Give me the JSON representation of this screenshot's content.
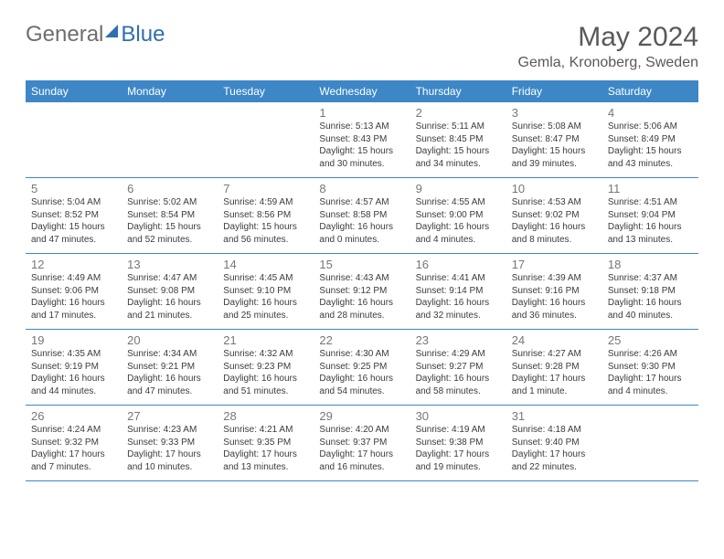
{
  "brand": {
    "word1": "General",
    "word2": "Blue"
  },
  "title": "May 2024",
  "location": "Gemla, Kronoberg, Sweden",
  "colors": {
    "header_bg": "#3d87c7",
    "header_text": "#ffffff",
    "title_text": "#595959",
    "daynum_text": "#777777",
    "body_text": "#3b3b3b",
    "rule": "#3d87c7"
  },
  "weekdays": [
    "Sunday",
    "Monday",
    "Tuesday",
    "Wednesday",
    "Thursday",
    "Friday",
    "Saturday"
  ],
  "weeks": [
    [
      null,
      null,
      null,
      {
        "n": "1",
        "sunrise": "5:13 AM",
        "sunset": "8:43 PM",
        "daylight": "15 hours and 30 minutes."
      },
      {
        "n": "2",
        "sunrise": "5:11 AM",
        "sunset": "8:45 PM",
        "daylight": "15 hours and 34 minutes."
      },
      {
        "n": "3",
        "sunrise": "5:08 AM",
        "sunset": "8:47 PM",
        "daylight": "15 hours and 39 minutes."
      },
      {
        "n": "4",
        "sunrise": "5:06 AM",
        "sunset": "8:49 PM",
        "daylight": "15 hours and 43 minutes."
      }
    ],
    [
      {
        "n": "5",
        "sunrise": "5:04 AM",
        "sunset": "8:52 PM",
        "daylight": "15 hours and 47 minutes."
      },
      {
        "n": "6",
        "sunrise": "5:02 AM",
        "sunset": "8:54 PM",
        "daylight": "15 hours and 52 minutes."
      },
      {
        "n": "7",
        "sunrise": "4:59 AM",
        "sunset": "8:56 PM",
        "daylight": "15 hours and 56 minutes."
      },
      {
        "n": "8",
        "sunrise": "4:57 AM",
        "sunset": "8:58 PM",
        "daylight": "16 hours and 0 minutes."
      },
      {
        "n": "9",
        "sunrise": "4:55 AM",
        "sunset": "9:00 PM",
        "daylight": "16 hours and 4 minutes."
      },
      {
        "n": "10",
        "sunrise": "4:53 AM",
        "sunset": "9:02 PM",
        "daylight": "16 hours and 8 minutes."
      },
      {
        "n": "11",
        "sunrise": "4:51 AM",
        "sunset": "9:04 PM",
        "daylight": "16 hours and 13 minutes."
      }
    ],
    [
      {
        "n": "12",
        "sunrise": "4:49 AM",
        "sunset": "9:06 PM",
        "daylight": "16 hours and 17 minutes."
      },
      {
        "n": "13",
        "sunrise": "4:47 AM",
        "sunset": "9:08 PM",
        "daylight": "16 hours and 21 minutes."
      },
      {
        "n": "14",
        "sunrise": "4:45 AM",
        "sunset": "9:10 PM",
        "daylight": "16 hours and 25 minutes."
      },
      {
        "n": "15",
        "sunrise": "4:43 AM",
        "sunset": "9:12 PM",
        "daylight": "16 hours and 28 minutes."
      },
      {
        "n": "16",
        "sunrise": "4:41 AM",
        "sunset": "9:14 PM",
        "daylight": "16 hours and 32 minutes."
      },
      {
        "n": "17",
        "sunrise": "4:39 AM",
        "sunset": "9:16 PM",
        "daylight": "16 hours and 36 minutes."
      },
      {
        "n": "18",
        "sunrise": "4:37 AM",
        "sunset": "9:18 PM",
        "daylight": "16 hours and 40 minutes."
      }
    ],
    [
      {
        "n": "19",
        "sunrise": "4:35 AM",
        "sunset": "9:19 PM",
        "daylight": "16 hours and 44 minutes."
      },
      {
        "n": "20",
        "sunrise": "4:34 AM",
        "sunset": "9:21 PM",
        "daylight": "16 hours and 47 minutes."
      },
      {
        "n": "21",
        "sunrise": "4:32 AM",
        "sunset": "9:23 PM",
        "daylight": "16 hours and 51 minutes."
      },
      {
        "n": "22",
        "sunrise": "4:30 AM",
        "sunset": "9:25 PM",
        "daylight": "16 hours and 54 minutes."
      },
      {
        "n": "23",
        "sunrise": "4:29 AM",
        "sunset": "9:27 PM",
        "daylight": "16 hours and 58 minutes."
      },
      {
        "n": "24",
        "sunrise": "4:27 AM",
        "sunset": "9:28 PM",
        "daylight": "17 hours and 1 minute."
      },
      {
        "n": "25",
        "sunrise": "4:26 AM",
        "sunset": "9:30 PM",
        "daylight": "17 hours and 4 minutes."
      }
    ],
    [
      {
        "n": "26",
        "sunrise": "4:24 AM",
        "sunset": "9:32 PM",
        "daylight": "17 hours and 7 minutes."
      },
      {
        "n": "27",
        "sunrise": "4:23 AM",
        "sunset": "9:33 PM",
        "daylight": "17 hours and 10 minutes."
      },
      {
        "n": "28",
        "sunrise": "4:21 AM",
        "sunset": "9:35 PM",
        "daylight": "17 hours and 13 minutes."
      },
      {
        "n": "29",
        "sunrise": "4:20 AM",
        "sunset": "9:37 PM",
        "daylight": "17 hours and 16 minutes."
      },
      {
        "n": "30",
        "sunrise": "4:19 AM",
        "sunset": "9:38 PM",
        "daylight": "17 hours and 19 minutes."
      },
      {
        "n": "31",
        "sunrise": "4:18 AM",
        "sunset": "9:40 PM",
        "daylight": "17 hours and 22 minutes."
      },
      null
    ]
  ],
  "labels": {
    "sunrise": "Sunrise:",
    "sunset": "Sunset:",
    "daylight": "Daylight:"
  }
}
